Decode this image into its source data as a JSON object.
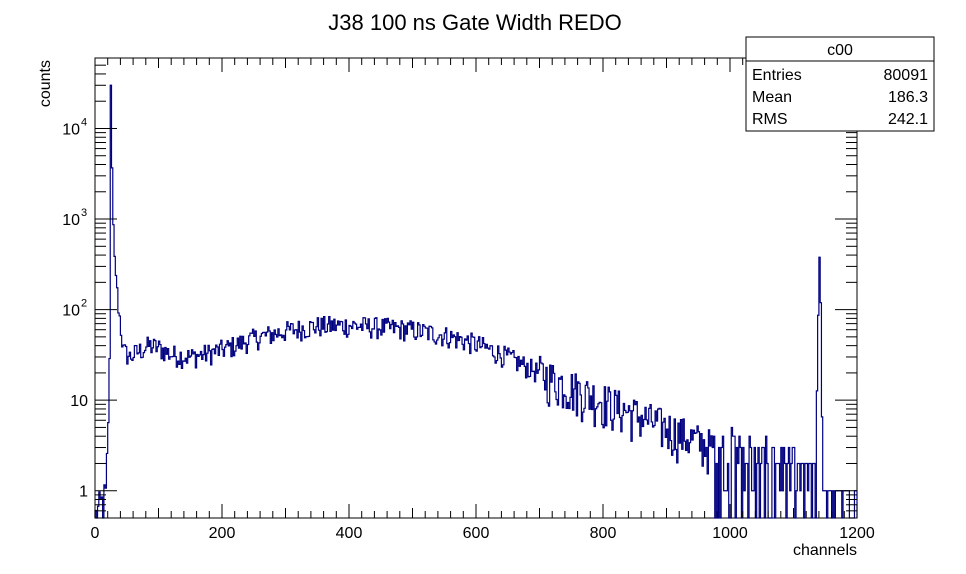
{
  "chart_data": {
    "type": "histogram",
    "title": "J38 100 ns Gate Width REDO",
    "xlabel": "channels",
    "ylabel": "counts",
    "xlim": [
      0,
      1200
    ],
    "ylim": [
      0.5,
      60000
    ],
    "yscale": "log",
    "grid": false,
    "line_color": "#000080",
    "x_ticks": [
      "0",
      "200",
      "400",
      "600",
      "800",
      "1000",
      "1200"
    ],
    "y_ticks": [
      {
        "value": 1,
        "label": "1",
        "sup": ""
      },
      {
        "value": 10,
        "label": "10",
        "sup": ""
      },
      {
        "value": 100,
        "label": "10",
        "sup": "2"
      },
      {
        "value": 1000,
        "label": "10",
        "sup": "3"
      },
      {
        "value": 10000,
        "label": "10",
        "sup": "4"
      }
    ],
    "stats_box": {
      "title": "c00",
      "rows": [
        {
          "label": "Entries",
          "value": "80091"
        },
        {
          "label": "Mean",
          "value": "186.3"
        },
        {
          "label": "RMS",
          "value": "242.1"
        }
      ]
    },
    "profile": [
      [
        0,
        0.5
      ],
      [
        18,
        0.9
      ],
      [
        20,
        4
      ],
      [
        22,
        5
      ],
      [
        24,
        200
      ],
      [
        25,
        30000
      ],
      [
        26,
        9000
      ],
      [
        28,
        1500
      ],
      [
        30,
        500
      ],
      [
        32,
        300
      ],
      [
        35,
        150
      ],
      [
        40,
        70
      ],
      [
        45,
        35
      ],
      [
        55,
        30
      ],
      [
        70,
        35
      ],
      [
        85,
        40
      ],
      [
        100,
        38
      ],
      [
        120,
        32
      ],
      [
        150,
        30
      ],
      [
        180,
        33
      ],
      [
        210,
        38
      ],
      [
        250,
        48
      ],
      [
        300,
        58
      ],
      [
        350,
        66
      ],
      [
        400,
        67
      ],
      [
        450,
        64
      ],
      [
        500,
        60
      ],
      [
        550,
        52
      ],
      [
        600,
        42
      ],
      [
        650,
        30
      ],
      [
        700,
        20
      ],
      [
        750,
        14
      ],
      [
        800,
        10
      ],
      [
        850,
        7
      ],
      [
        900,
        5
      ],
      [
        950,
        3.5
      ],
      [
        1000,
        2.5
      ],
      [
        1050,
        2
      ],
      [
        1100,
        1.5
      ],
      [
        1130,
        1.2
      ],
      [
        1135,
        3
      ],
      [
        1138,
        20
      ],
      [
        1140,
        250
      ],
      [
        1142,
        380
      ],
      [
        1144,
        50
      ],
      [
        1146,
        0.5
      ],
      [
        1200,
        0.5
      ]
    ]
  }
}
